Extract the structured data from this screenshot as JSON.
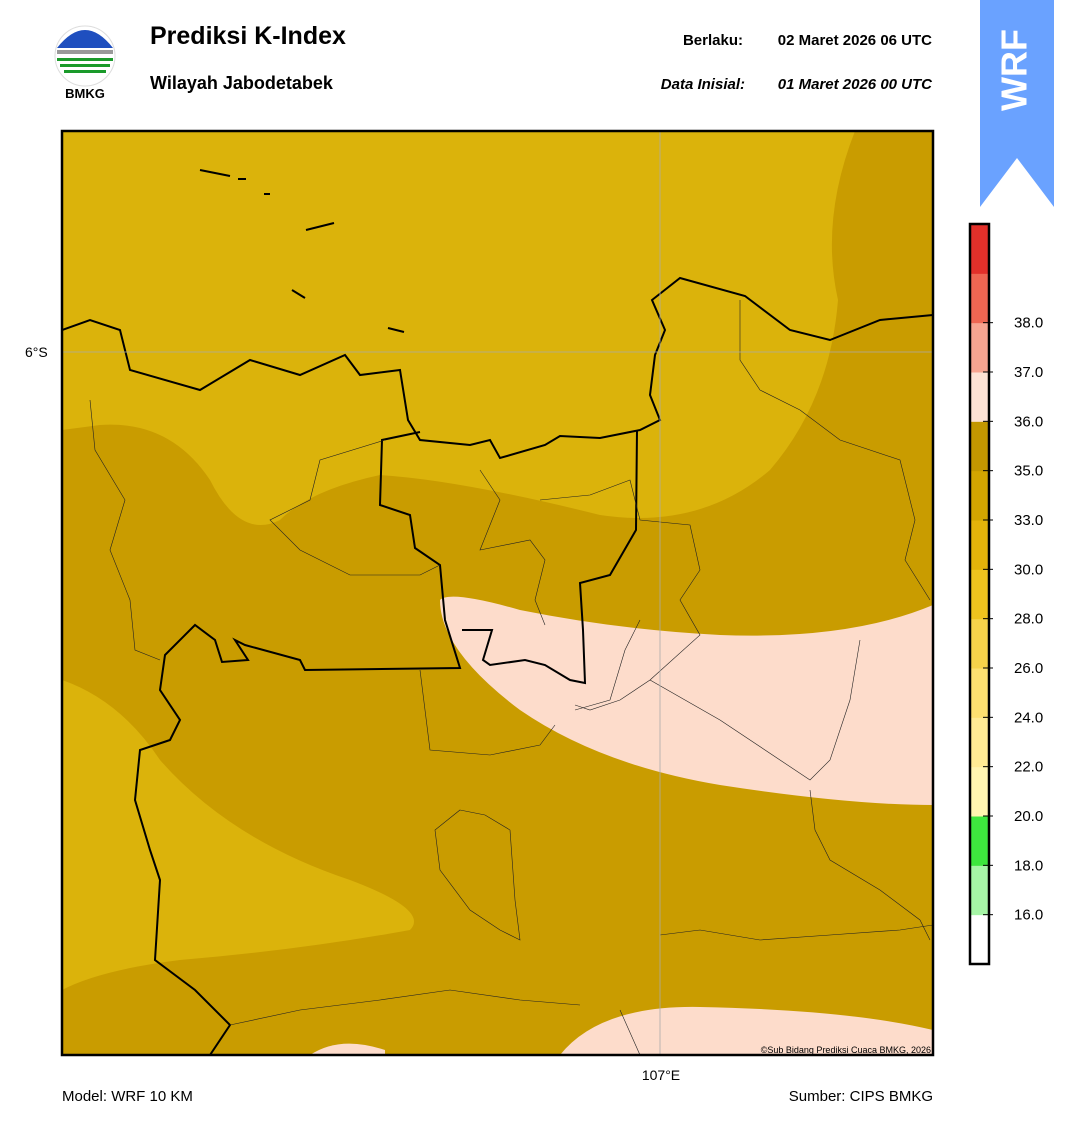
{
  "header": {
    "title": "Prediksi K-Index",
    "subtitle": "Wilayah Jabodetabek",
    "logo_text": "BMKG",
    "valid_label": "Berlaku:",
    "valid_time": "02 Maret 2026 06 UTC",
    "init_label": "Data Inisial:",
    "init_time": "01 Maret 2026 00 UTC",
    "badge": "WRF"
  },
  "map": {
    "lat_label": "6°S",
    "lon_label": "107°E",
    "copyright": "©Sub Bidang Prediksi Cuaca BMKG, 2026"
  },
  "colorbar": {
    "colors": [
      "#ffffff",
      "#a6f5a6",
      "#3ee63e",
      "#fff5b0",
      "#ffeb94",
      "#fde070",
      "#f6d24a",
      "#efc31e",
      "#e4b30a",
      "#d2a500",
      "#c29700",
      "#fde2d4",
      "#f7a490",
      "#ee6652",
      "#e2302a"
    ],
    "ticks": [
      {
        "value": 16,
        "label": "16.0"
      },
      {
        "value": 18,
        "label": "18.0"
      },
      {
        "value": 20,
        "label": "20.0"
      },
      {
        "value": 22,
        "label": "22.0"
      },
      {
        "value": 24,
        "label": "24.0"
      },
      {
        "value": 26,
        "label": "26.0"
      },
      {
        "value": 28,
        "label": "28.0"
      },
      {
        "value": 30,
        "label": "30.0"
      },
      {
        "value": 33,
        "label": "33.0"
      },
      {
        "value": 35,
        "label": "35.0"
      },
      {
        "value": 36,
        "label": "36.0"
      },
      {
        "value": 37,
        "label": "37.0"
      },
      {
        "value": 38,
        "label": "38.0"
      }
    ]
  },
  "footer": {
    "model": "Model: WRF 10 KM",
    "source": "Sumber: CIPS BMKG"
  }
}
